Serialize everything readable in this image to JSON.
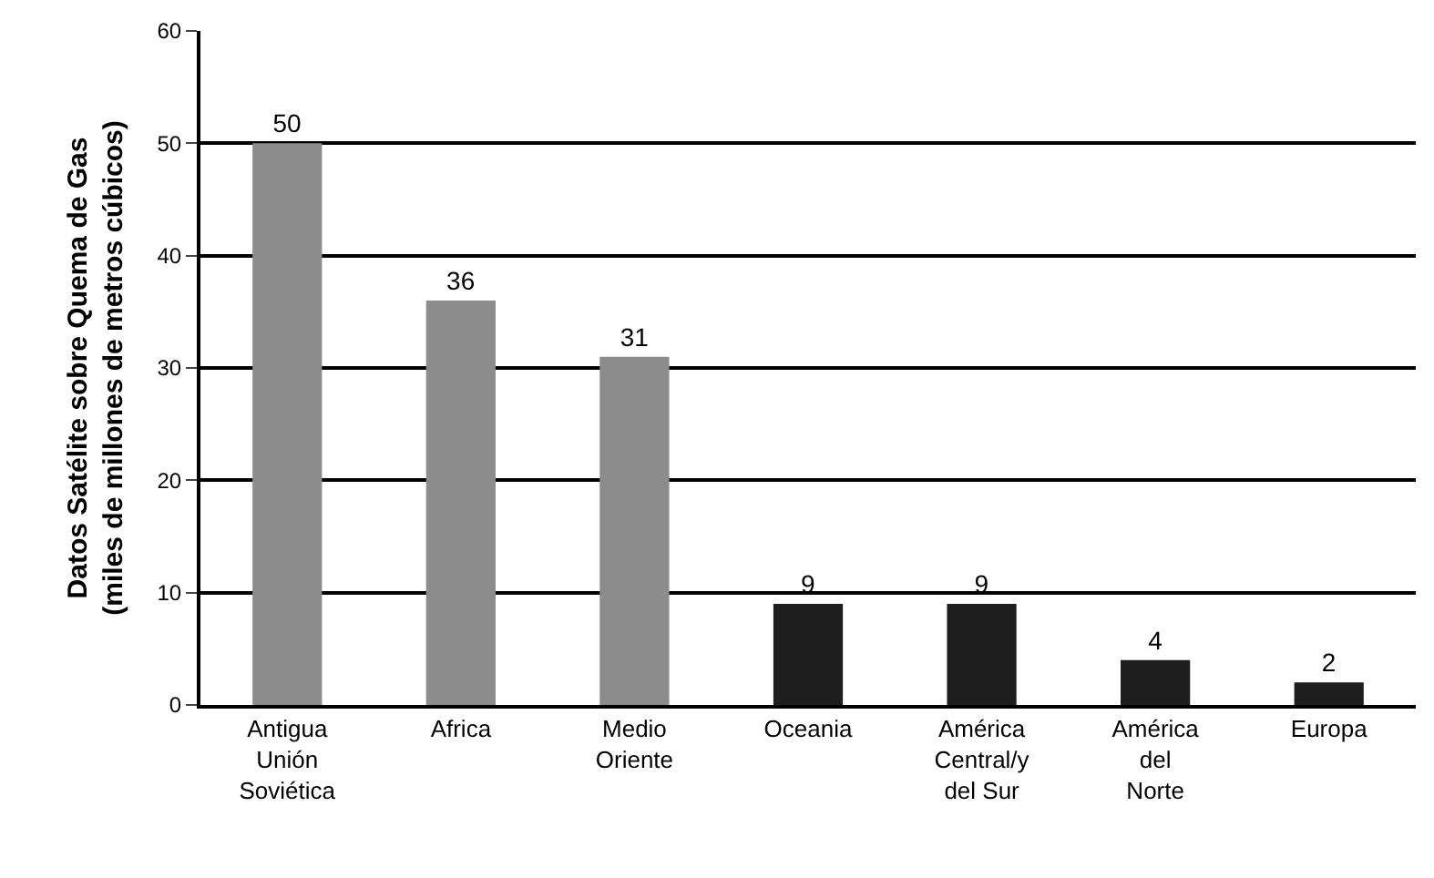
{
  "chart_data": {
    "type": "bar",
    "ylabel": "Datos Satélite sobre Quema de Gas\n(miles de millones de metros cúbicos)",
    "categories": [
      "Antigua\nUnión\nSoviética",
      "Africa",
      "Medio\nOriente",
      "Oceania",
      "América\nCentral/y\ndel Sur",
      "América\ndel\nNorte",
      "Europa"
    ],
    "values": [
      50,
      36,
      31,
      9,
      9,
      4,
      2
    ],
    "colors": [
      "#8c8c8c",
      "#8c8c8c",
      "#8c8c8c",
      "#1e1e1e",
      "#1e1e1e",
      "#1e1e1e",
      "#1e1e1e"
    ],
    "ylim": [
      0,
      60
    ],
    "yticks": [
      0,
      10,
      20,
      30,
      40,
      50,
      60
    ],
    "grid": "y",
    "data_labels": true
  }
}
